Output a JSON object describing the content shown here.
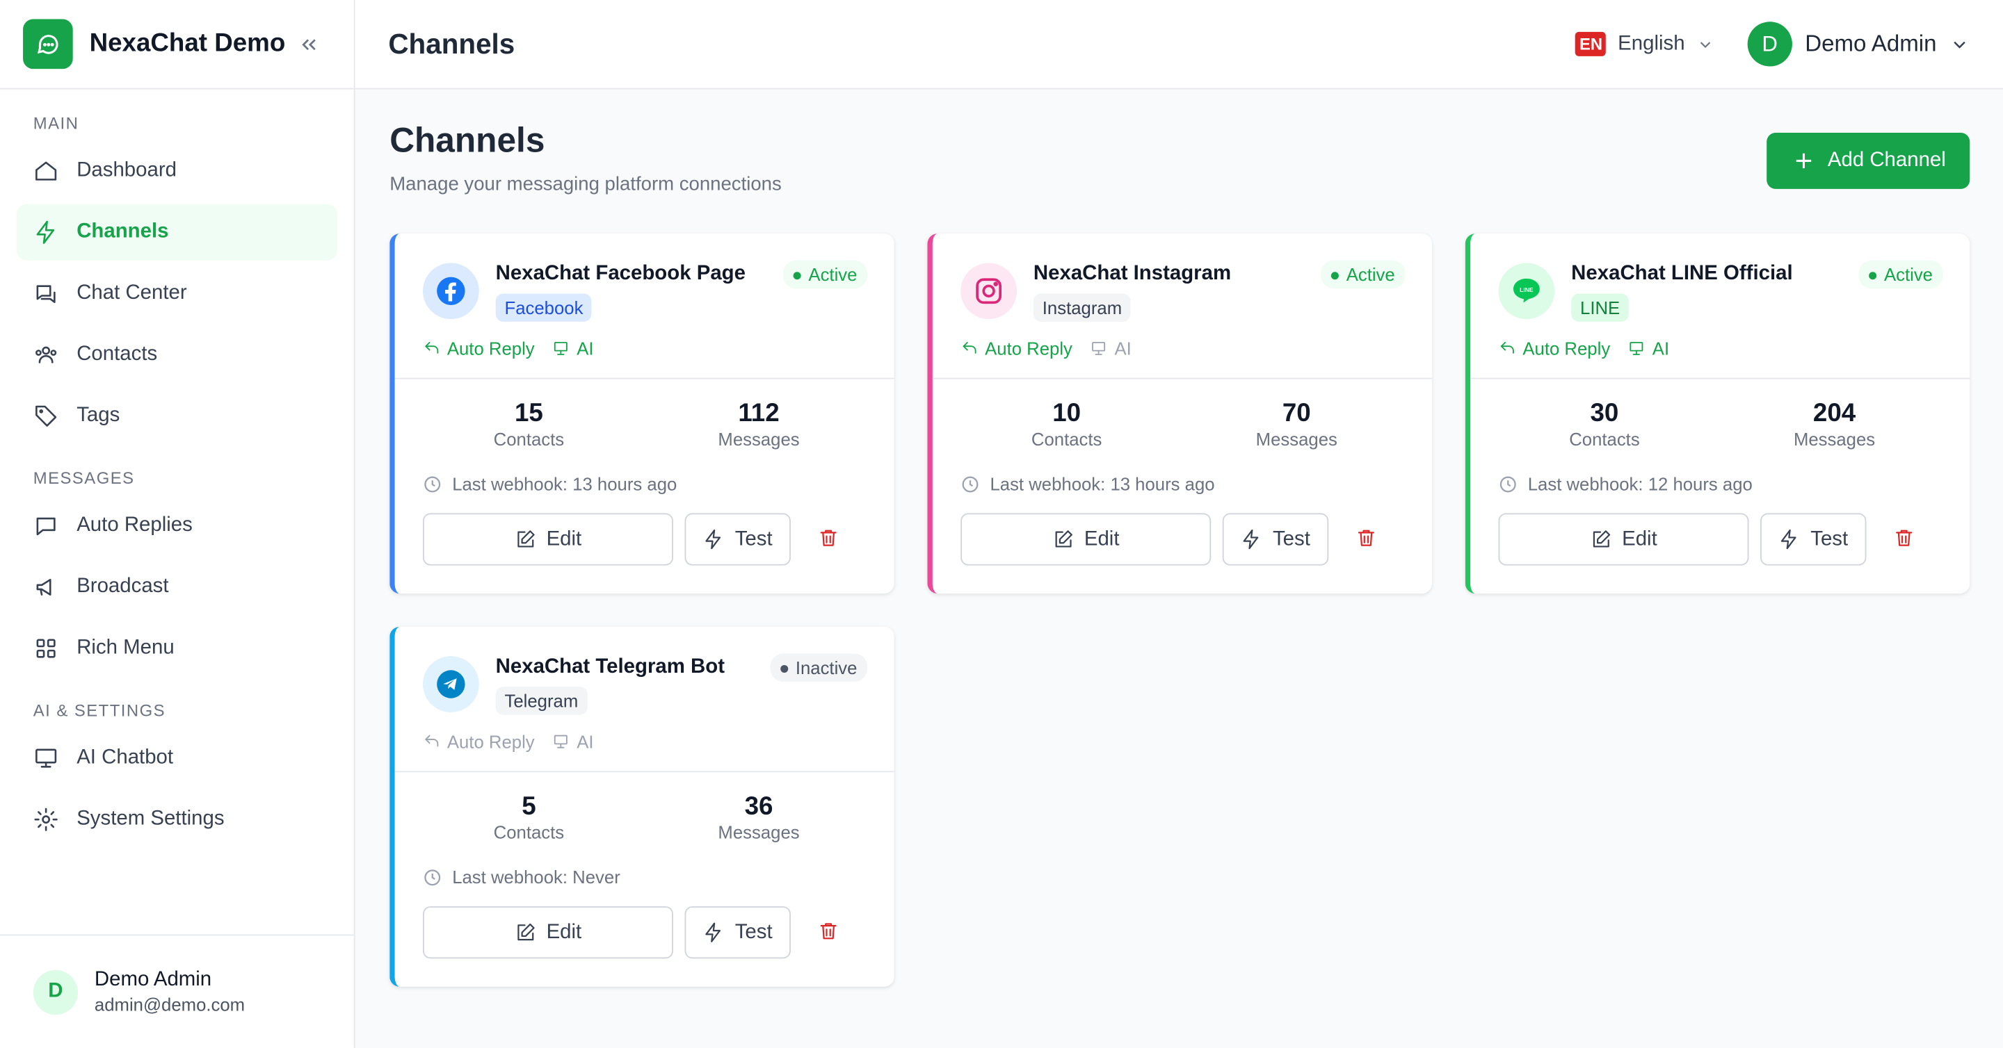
{
  "sidebar": {
    "brand": "NexaChat Demo",
    "sections": [
      {
        "title": "MAIN",
        "items": [
          "Dashboard",
          "Channels",
          "Chat Center",
          "Contacts",
          "Tags"
        ]
      },
      {
        "title": "MESSAGES",
        "items": [
          "Auto Replies",
          "Broadcast",
          "Rich Menu"
        ]
      },
      {
        "title": "AI & SETTINGS",
        "items": [
          "AI Chatbot",
          "System Settings"
        ]
      }
    ],
    "user": {
      "initial": "D",
      "name": "Demo Admin",
      "email": "admin@demo.com"
    }
  },
  "topbar": {
    "title": "Channels",
    "language_code": "EN",
    "language": "English",
    "user_initial": "D",
    "user_name": "Demo Admin"
  },
  "page": {
    "title": "Channels",
    "subtitle": "Manage your messaging platform connections",
    "add_button": "Add Channel"
  },
  "channels": [
    {
      "name": "NexaChat Facebook Page",
      "platform": "Facebook",
      "status": "Active",
      "accent": "#3b82f6",
      "badge_bg": "#dbeafe",
      "badge_text": "#1d4ed8",
      "features": [
        {
          "label": "Auto Reply",
          "enabled": true
        },
        {
          "label": "AI",
          "enabled": true
        }
      ],
      "contacts": 15,
      "contacts_label": "Contacts",
      "messages": 112,
      "messages_label": "Messages",
      "last_webhook": "Last webhook: 13 hours ago",
      "edit": "Edit",
      "test": "Test"
    },
    {
      "name": "NexaChat Instagram",
      "platform": "Instagram",
      "status": "Active",
      "accent": "#ec4899",
      "badge_bg": "#f3f4f6",
      "badge_text": "#374151",
      "features": [
        {
          "label": "Auto Reply",
          "enabled": true
        },
        {
          "label": "AI",
          "enabled": false
        }
      ],
      "contacts": 10,
      "contacts_label": "Contacts",
      "messages": 70,
      "messages_label": "Messages",
      "last_webhook": "Last webhook: 13 hours ago",
      "edit": "Edit",
      "test": "Test"
    },
    {
      "name": "NexaChat LINE Official",
      "platform": "LINE",
      "status": "Active",
      "accent": "#22c55e",
      "badge_bg": "#dcfce7",
      "badge_text": "#15803d",
      "features": [
        {
          "label": "Auto Reply",
          "enabled": true
        },
        {
          "label": "AI",
          "enabled": true
        }
      ],
      "contacts": 30,
      "contacts_label": "Contacts",
      "messages": 204,
      "messages_label": "Messages",
      "last_webhook": "Last webhook: 12 hours ago",
      "edit": "Edit",
      "test": "Test"
    },
    {
      "name": "NexaChat Telegram Bot",
      "platform": "Telegram",
      "status": "Inactive",
      "accent": "#0ea5e9",
      "badge_bg": "#f3f4f6",
      "badge_text": "#374151",
      "features": [
        {
          "label": "Auto Reply",
          "enabled": false
        },
        {
          "label": "AI",
          "enabled": false
        }
      ],
      "contacts": 5,
      "contacts_label": "Contacts",
      "messages": 36,
      "messages_label": "Messages",
      "last_webhook": "Last webhook: Never",
      "edit": "Edit",
      "test": "Test"
    }
  ]
}
